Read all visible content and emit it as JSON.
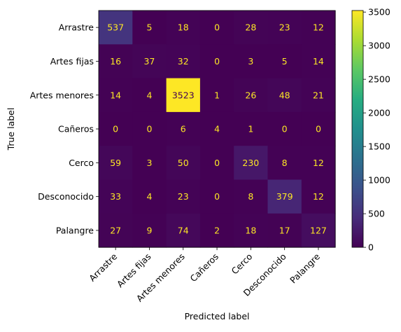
{
  "chart_data": {
    "type": "heatmap",
    "title": "",
    "xlabel": "Predicted label",
    "ylabel": "True label",
    "row_labels": [
      "Arrastre",
      "Artes fijas",
      "Artes menores",
      "Cañeros",
      "Cerco",
      "Desconocido",
      "Palangre"
    ],
    "col_labels": [
      "Arrastre",
      "Artes fijas",
      "Artes menores",
      "Cañeros",
      "Cerco",
      "Desconocido",
      "Palangre"
    ],
    "values": [
      [
        537,
        5,
        18,
        0,
        28,
        23,
        12
      ],
      [
        16,
        37,
        32,
        0,
        3,
        5,
        14
      ],
      [
        14,
        4,
        3523,
        1,
        26,
        48,
        21
      ],
      [
        0,
        0,
        6,
        4,
        1,
        0,
        0
      ],
      [
        59,
        3,
        50,
        0,
        230,
        8,
        12
      ],
      [
        33,
        4,
        23,
        0,
        8,
        379,
        12
      ],
      [
        27,
        9,
        74,
        2,
        18,
        17,
        127
      ]
    ],
    "colorbar": {
      "colormap": "viridis",
      "vmin": 0,
      "vmax": 3523,
      "ticks": [
        "0",
        "500",
        "1000",
        "1500",
        "2000",
        "2500",
        "3000",
        "3500"
      ]
    },
    "grid": false,
    "text_color_low": "#fde725",
    "text_color_high": "#440154"
  }
}
